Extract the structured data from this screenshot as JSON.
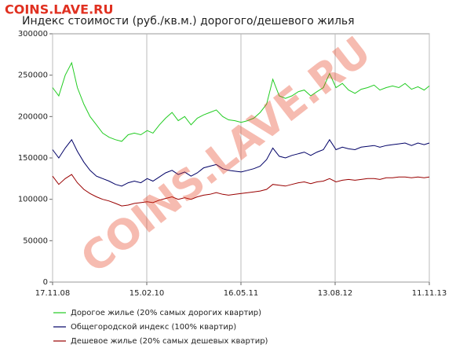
{
  "chart_data": {
    "type": "line",
    "title": "Индекс стоимости (руб./кв.м.) дорогого/дешевого жилья",
    "watermark": "COINS.LAVE.RU",
    "x": [
      "2008-11-17",
      "2008-12-17",
      "2009-01-17",
      "2009-02-17",
      "2009-03-17",
      "2009-04-17",
      "2009-05-17",
      "2009-06-17",
      "2009-07-17",
      "2009-08-17",
      "2009-09-17",
      "2009-10-17",
      "2009-11-17",
      "2009-12-17",
      "2010-01-17",
      "2010-02-17",
      "2010-03-17",
      "2010-04-17",
      "2010-05-17",
      "2010-06-17",
      "2010-07-17",
      "2010-08-17",
      "2010-09-17",
      "2010-10-17",
      "2010-11-17",
      "2010-12-17",
      "2011-01-17",
      "2011-02-17",
      "2011-03-17",
      "2011-04-17",
      "2011-05-17",
      "2011-06-17",
      "2011-07-17",
      "2011-08-17",
      "2011-09-17",
      "2011-10-17",
      "2011-11-17",
      "2011-12-17",
      "2012-01-17",
      "2012-02-17",
      "2012-03-17",
      "2012-04-17",
      "2012-05-17",
      "2012-06-17",
      "2012-07-17",
      "2012-08-17",
      "2012-09-17",
      "2012-10-17",
      "2012-11-17",
      "2012-12-17",
      "2013-01-17",
      "2013-02-17",
      "2013-03-17",
      "2013-04-17",
      "2013-05-17",
      "2013-06-17",
      "2013-07-17",
      "2013-08-17",
      "2013-09-17",
      "2013-10-17",
      "2013-11-11"
    ],
    "series": [
      {
        "name": "Дорогое жилье (20% самых дорогих квартир)",
        "color": "#22cc22",
        "values": [
          235000,
          225000,
          250000,
          265000,
          235000,
          215000,
          200000,
          190000,
          180000,
          175000,
          172000,
          170000,
          178000,
          180000,
          178000,
          183000,
          180000,
          190000,
          198000,
          205000,
          195000,
          200000,
          190000,
          198000,
          202000,
          205000,
          208000,
          200000,
          196000,
          195000,
          193000,
          195000,
          198000,
          205000,
          215000,
          245000,
          225000,
          222000,
          225000,
          230000,
          232000,
          225000,
          230000,
          235000,
          252000,
          235000,
          240000,
          232000,
          228000,
          233000,
          235000,
          238000,
          232000,
          235000,
          237000,
          235000,
          240000,
          233000,
          236000,
          232000,
          237000
        ]
      },
      {
        "name": "Общегородской индекс (100% квартир)",
        "color": "#000066",
        "values": [
          160000,
          150000,
          162000,
          172000,
          158000,
          145000,
          135000,
          128000,
          125000,
          122000,
          118000,
          116000,
          120000,
          122000,
          120000,
          125000,
          122000,
          127000,
          132000,
          135000,
          130000,
          133000,
          128000,
          132000,
          138000,
          140000,
          142000,
          137000,
          135000,
          134000,
          133000,
          135000,
          137000,
          140000,
          148000,
          162000,
          152000,
          150000,
          153000,
          155000,
          157000,
          153000,
          157000,
          160000,
          172000,
          160000,
          163000,
          161000,
          160000,
          163000,
          164000,
          165000,
          163000,
          165000,
          166000,
          167000,
          168000,
          165000,
          168000,
          166000,
          168000
        ]
      },
      {
        "name": "Дешевое жилье (20% самых дешевых квартир)",
        "color": "#990000",
        "values": [
          128000,
          118000,
          125000,
          130000,
          120000,
          112000,
          107000,
          103000,
          100000,
          98000,
          95000,
          92000,
          93000,
          95000,
          96000,
          97000,
          96000,
          99000,
          101000,
          103000,
          100000,
          102000,
          100000,
          103000,
          105000,
          106000,
          108000,
          106000,
          105000,
          106000,
          107000,
          108000,
          109000,
          110000,
          112000,
          118000,
          117000,
          116000,
          118000,
          120000,
          121000,
          119000,
          121000,
          122000,
          125000,
          121000,
          123000,
          124000,
          123000,
          124000,
          125000,
          125000,
          124000,
          126000,
          126000,
          127000,
          127000,
          126000,
          127000,
          126000,
          127000
        ]
      }
    ],
    "xlim": [
      "2008-11-17",
      "2013-11-11"
    ],
    "xticks": [
      {
        "value": "2008-11-17",
        "label": "17.11.08"
      },
      {
        "value": "2010-02-15",
        "label": "15.02.10"
      },
      {
        "value": "2011-05-16",
        "label": "16.05.11"
      },
      {
        "value": "2012-08-13",
        "label": "13.08.12"
      },
      {
        "value": "2013-11-11",
        "label": "11.11.13"
      }
    ],
    "ylim": [
      0,
      300000
    ],
    "yticks": [
      0,
      50000,
      100000,
      150000,
      200000,
      250000,
      300000
    ],
    "xgrid": true,
    "ygrid": false,
    "legend": "bottom"
  }
}
